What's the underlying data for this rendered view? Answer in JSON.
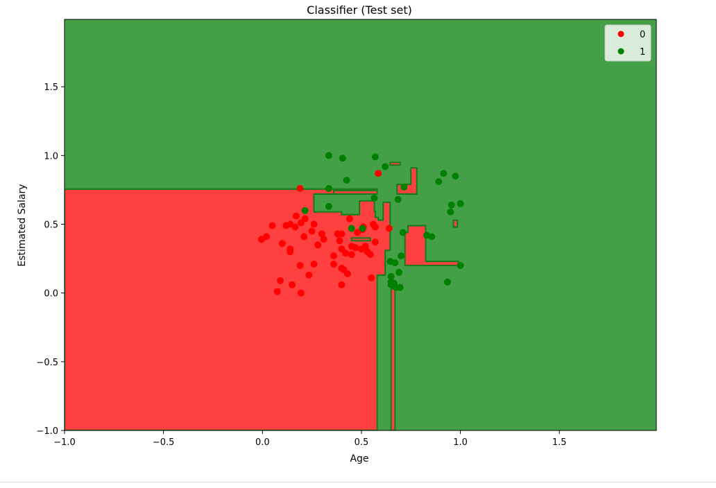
{
  "chart_data": {
    "type": "scatter",
    "title": "Classifier (Test set)",
    "xlabel": "Age",
    "ylabel": "Estimated Salary",
    "xlim": [
      -1.0,
      1.99
    ],
    "ylim": [
      -1.0,
      1.99
    ],
    "xticks": [
      -1.0,
      -0.5,
      0.0,
      0.5,
      1.0,
      1.5
    ],
    "yticks": [
      -1.0,
      -0.5,
      0.0,
      0.5,
      1.0,
      1.5
    ],
    "xtick_labels": [
      "−1.0",
      "−0.5",
      "0.0",
      "0.5",
      "1.0",
      "1.5"
    ],
    "ytick_labels": [
      "−1.0",
      "−0.5",
      "0.0",
      "0.5",
      "1.0",
      "1.5"
    ],
    "grid": false,
    "legend_position": "top-right",
    "background_region": {
      "class": "1",
      "color": "#43a047"
    },
    "decision_regions": [
      {
        "class": "0",
        "color": "#ff4040",
        "edge_color": "#1e7a1e",
        "polygons": [
          [
            [
              -1.0,
              -1.0
            ],
            [
              -1.0,
              0.755
            ],
            [
              0.58,
              0.755
            ],
            [
              0.58,
              0.745
            ],
            [
              0.365,
              0.745
            ],
            [
              0.365,
              0.72
            ],
            [
              0.26,
              0.72
            ],
            [
              0.26,
              0.59
            ],
            [
              0.4,
              0.59
            ],
            [
              0.4,
              0.57
            ],
            [
              0.49,
              0.57
            ],
            [
              0.49,
              0.67
            ],
            [
              0.565,
              0.67
            ],
            [
              0.565,
              0.595
            ],
            [
              0.57,
              0.595
            ],
            [
              0.57,
              0.55
            ],
            [
              0.585,
              0.55
            ],
            [
              0.585,
              0.53
            ],
            [
              0.61,
              0.53
            ],
            [
              0.61,
              0.66
            ],
            [
              0.645,
              0.66
            ],
            [
              0.645,
              0.31
            ],
            [
              0.62,
              0.31
            ],
            [
              0.62,
              0.13
            ],
            [
              0.58,
              0.13
            ],
            [
              0.58,
              -1.0
            ]
          ],
          [
            [
              0.65,
              -1.0
            ],
            [
              0.65,
              0.03
            ],
            [
              0.67,
              0.03
            ],
            [
              0.67,
              -1.0
            ]
          ],
          [
            [
              0.72,
              0.2
            ],
            [
              0.72,
              0.44
            ],
            [
              0.735,
              0.44
            ],
            [
              0.735,
              0.49
            ],
            [
              0.825,
              0.49
            ],
            [
              0.825,
              0.23
            ],
            [
              0.99,
              0.23
            ],
            [
              0.99,
              0.2
            ]
          ],
          [
            [
              0.68,
              0.72
            ],
            [
              0.68,
              0.79
            ],
            [
              0.75,
              0.79
            ],
            [
              0.75,
              0.91
            ],
            [
              0.78,
              0.91
            ],
            [
              0.78,
              0.72
            ]
          ],
          [
            [
              0.645,
              0.93
            ],
            [
              0.645,
              0.95
            ],
            [
              0.695,
              0.95
            ],
            [
              0.695,
              0.93
            ]
          ],
          [
            [
              0.965,
              0.48
            ],
            [
              0.965,
              0.53
            ],
            [
              0.985,
              0.53
            ],
            [
              0.985,
              0.48
            ]
          ],
          [
            [
              0.36,
              0.72
            ],
            [
              0.36,
              0.745
            ],
            [
              0.58,
              0.745
            ],
            [
              0.58,
              0.72
            ]
          ],
          [
            [
              0.45,
              0.38
            ],
            [
              0.45,
              0.4
            ],
            [
              0.545,
              0.4
            ],
            [
              0.545,
              0.38
            ]
          ]
        ]
      }
    ],
    "series": [
      {
        "name": "0",
        "color": "#ff0000",
        "points": [
          [
            -0.005,
            0.39
          ],
          [
            0.02,
            0.41
          ],
          [
            0.05,
            0.49
          ],
          [
            0.075,
            0.01
          ],
          [
            0.09,
            0.09
          ],
          [
            0.1,
            0.36
          ],
          [
            0.12,
            0.49
          ],
          [
            0.14,
            0.5
          ],
          [
            0.14,
            0.32
          ],
          [
            0.14,
            0.3
          ],
          [
            0.15,
            0.06
          ],
          [
            0.165,
            0.48
          ],
          [
            0.17,
            0.56
          ],
          [
            0.19,
            0.76
          ],
          [
            0.19,
            0.2
          ],
          [
            0.195,
            0.51
          ],
          [
            0.195,
            0.0
          ],
          [
            0.21,
            0.41
          ],
          [
            0.215,
            0.54
          ],
          [
            0.235,
            0.13
          ],
          [
            0.25,
            0.45
          ],
          [
            0.26,
            0.5
          ],
          [
            0.26,
            0.21
          ],
          [
            0.28,
            0.35
          ],
          [
            0.3,
            0.43
          ],
          [
            0.31,
            0.39
          ],
          [
            0.36,
            0.27
          ],
          [
            0.36,
            0.21
          ],
          [
            0.38,
            0.43
          ],
          [
            0.39,
            0.38
          ],
          [
            0.4,
            0.43
          ],
          [
            0.4,
            0.32
          ],
          [
            0.4,
            0.18
          ],
          [
            0.4,
            0.06
          ],
          [
            0.41,
            0.17
          ],
          [
            0.42,
            0.29
          ],
          [
            0.43,
            0.14
          ],
          [
            0.44,
            0.54
          ],
          [
            0.45,
            0.34
          ],
          [
            0.45,
            0.28
          ],
          [
            0.47,
            0.33
          ],
          [
            0.48,
            0.44
          ],
          [
            0.5,
            0.32
          ],
          [
            0.505,
            0.46
          ],
          [
            0.51,
            0.48
          ],
          [
            0.52,
            0.34
          ],
          [
            0.53,
            0.3
          ],
          [
            0.545,
            0.28
          ],
          [
            0.55,
            0.11
          ],
          [
            0.56,
            0.5
          ],
          [
            0.57,
            0.48
          ],
          [
            0.57,
            0.37
          ],
          [
            0.585,
            0.87
          ],
          [
            0.64,
            0.47
          ]
        ]
      },
      {
        "name": "1",
        "color": "#008000",
        "points": [
          [
            0.215,
            0.6
          ],
          [
            0.335,
            0.76
          ],
          [
            0.335,
            0.63
          ],
          [
            0.335,
            1.0
          ],
          [
            0.405,
            0.98
          ],
          [
            0.425,
            0.82
          ],
          [
            0.45,
            0.47
          ],
          [
            0.505,
            0.47
          ],
          [
            0.565,
            0.69
          ],
          [
            0.57,
            0.99
          ],
          [
            0.62,
            0.92
          ],
          [
            0.645,
            0.23
          ],
          [
            0.65,
            0.12
          ],
          [
            0.65,
            0.08
          ],
          [
            0.65,
            0.06
          ],
          [
            0.665,
            0.07
          ],
          [
            0.67,
            0.22
          ],
          [
            0.675,
            0.04
          ],
          [
            0.685,
            0.68
          ],
          [
            0.69,
            0.15
          ],
          [
            0.695,
            0.04
          ],
          [
            0.7,
            0.27
          ],
          [
            0.71,
            0.44
          ],
          [
            0.715,
            0.77
          ],
          [
            0.83,
            0.42
          ],
          [
            0.855,
            0.41
          ],
          [
            0.89,
            0.81
          ],
          [
            0.915,
            0.87
          ],
          [
            0.935,
            0.08
          ],
          [
            0.95,
            0.59
          ],
          [
            0.955,
            0.64
          ],
          [
            0.975,
            0.85
          ],
          [
            1.0,
            0.2
          ],
          [
            1.0,
            0.65
          ]
        ]
      }
    ],
    "legend": [
      {
        "label": "0",
        "color": "#ff0000"
      },
      {
        "label": "1",
        "color": "#008000"
      }
    ]
  }
}
